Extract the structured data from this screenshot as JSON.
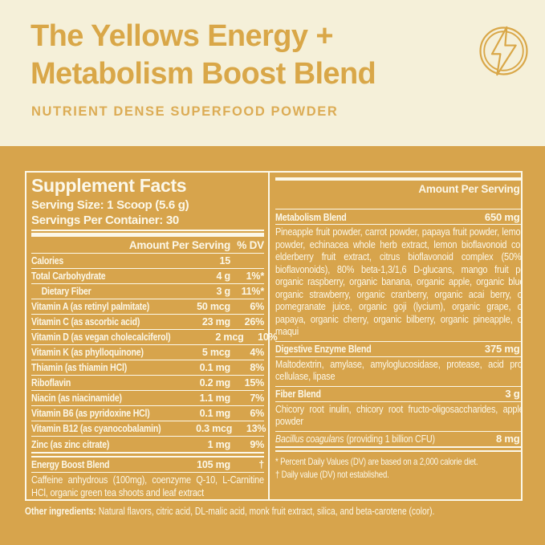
{
  "colors": {
    "cream_background": "#F5F0D9",
    "gold_background": "#D7A44C",
    "gold_text": "#D9A748",
    "panel_text": "#FCF8E9"
  },
  "header": {
    "title_line1": "The Yellows Energy +",
    "title_line2": "Metabolism Boost Blend",
    "subtitle": "NUTRIENT DENSE SUPERFOOD POWDER",
    "icon": "lightning-bolt-in-circle"
  },
  "panel": {
    "title": "Supplement Facts",
    "serving_size": "Serving Size: 1 Scoop (5.6 g)",
    "servings_per_container": "Servings Per Container: 30",
    "column_header": {
      "amount": "Amount Per Serving",
      "dv": "% DV"
    },
    "left_rows": [
      {
        "name": "Calories",
        "amount": "15",
        "dv": "",
        "indent": false
      },
      {
        "name": "Total Carbohydrate",
        "amount": "4 g",
        "dv": "1%*",
        "indent": false
      },
      {
        "name": "Dietary Fiber",
        "amount": "3 g",
        "dv": "11%*",
        "indent": true
      },
      {
        "name": "Vitamin A (as retinyl palmitate)",
        "amount": "50 mcg",
        "dv": "6%",
        "indent": false
      },
      {
        "name": "Vitamin C (as ascorbic acid)",
        "amount": "23 mg",
        "dv": "26%",
        "indent": false
      },
      {
        "name": "Vitamin D (as vegan cholecalciferol)",
        "amount": "2 mcg",
        "dv": "10%",
        "indent": false
      },
      {
        "name": "Vitamin K (as phylloquinone)",
        "amount": "5 mcg",
        "dv": "4%",
        "indent": false
      },
      {
        "name": "Thiamin (as thiamin HCl)",
        "amount": "0.1 mg",
        "dv": "8%",
        "indent": false
      },
      {
        "name": "Riboflavin",
        "amount": "0.2 mg",
        "dv": "15%",
        "indent": false
      },
      {
        "name": "Niacin (as niacinamide)",
        "amount": "1.1 mg",
        "dv": "7%",
        "indent": false
      },
      {
        "name": "Vitamin B6 (as pyridoxine HCl)",
        "amount": "0.1 mg",
        "dv": "6%",
        "indent": false
      },
      {
        "name": "Vitamin B12 (as cyanocobalamin)",
        "amount": "0.3 mcg",
        "dv": "13%",
        "indent": false
      },
      {
        "name": "Zinc (as zinc citrate)",
        "amount": "1 mg",
        "dv": "9%",
        "indent": false
      }
    ],
    "energy_blend": {
      "name": "Energy Boost Blend",
      "amount": "105 mg",
      "dv": "†",
      "description": "Caffeine anhydrous (100mg), coenzyme Q-10, L-Carnitine HCl, organic green tea shoots and leaf extract"
    },
    "right_sections": [
      {
        "name": "Metabolism Blend",
        "suffix": "",
        "italic": false,
        "amount": "650 mg",
        "dv": "†",
        "description": "Pineapple fruit powder, carrot powder, papaya fruit powder, lemon juice powder, echinacea whole herb extract, lemon bioflavonoid complex, elderberry fruit extract, citrus bioflavonoid complex (50% total bioflavonoids), 80% beta-1,3/1,6 D-glucans, mango fruit powder, organic raspberry, organic banana, organic apple, organic blueberry, organic strawberry, organic cranberry, organic acai berry, organic pomegranate juice, organic goji (lycium), organic grape, organic papaya, organic cherry, organic bilberry, organic pineapple, organic maqui"
      },
      {
        "name": "Digestive Enzyme Blend",
        "suffix": "",
        "italic": false,
        "amount": "375 mg",
        "dv": "†",
        "description": "Maltodextrin, amylase, amyloglucosidase, protease, acid protease, cellulase, lipase"
      },
      {
        "name": "Fiber Blend",
        "suffix": "",
        "italic": false,
        "amount": "3 g",
        "dv": "†",
        "description": "Chicory root inulin, chicory root fructo-oligosaccharides, apple fiber powder"
      },
      {
        "name": "Bacillus coagulans",
        "suffix": "(providing 1 billion CFU)",
        "italic": true,
        "amount": "8 mg",
        "dv": "†",
        "description": ""
      }
    ],
    "footnotes": [
      "* Percent Daily Values (DV) are based on a 2,000 calorie diet.",
      "† Daily value (DV) not established."
    ]
  },
  "other_ingredients": {
    "label": "Other ingredients:",
    "text": "Natural flavors, citric acid, DL-malic acid, monk fruit extract, silica, and beta-carotene (color)."
  }
}
